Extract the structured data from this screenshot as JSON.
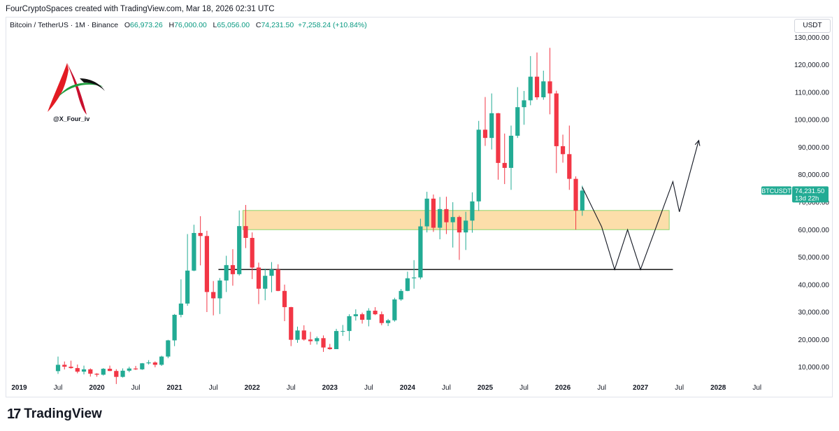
{
  "header": {
    "attribution": "FourCryptoSpaces created with TradingView.com, Mar 18, 2026 02:31 UTC"
  },
  "legend": {
    "symbol": "Bitcoin / TetherUS · 1M · Binance",
    "o_label": "O",
    "o_value": "66,973.26",
    "h_label": "H",
    "h_value": "76,000.00",
    "l_label": "L",
    "l_value": "65,056.00",
    "c_label": "C",
    "c_value": "74,231.50",
    "change": "+7,258.24 (+10.84%)"
  },
  "logo": {
    "handle": "@X_Four_iv",
    "mark": "A"
  },
  "price_scale": {
    "unit": "USDT"
  },
  "price_tag": {
    "symbol": "BTCUSDT",
    "price": "74,231.50",
    "countdown": "13d 22h"
  },
  "footer": {
    "brand": "TradingView",
    "icon": "tradingview-logo-icon"
  },
  "colors": {
    "up": "#22ab94",
    "down": "#f23645",
    "zone": "#fbd38d",
    "zone_border": "#8fd66f",
    "line": "#000000"
  },
  "chart_data": {
    "type": "candlestick",
    "interval": "1M",
    "y_axis_ticks": [
      10000,
      20000,
      30000,
      40000,
      50000,
      60000,
      70000,
      80000,
      90000,
      100000,
      110000,
      120000,
      130000
    ],
    "y_axis_labels": [
      "10,000.00",
      "20,000.00",
      "30,000.00",
      "40,000.00",
      "50,000.00",
      "60,000.00",
      "70,000.00",
      "80,000.00",
      "90,000.00",
      "100,000.00",
      "110,000.00",
      "120,000.00",
      "130,000.00"
    ],
    "ylim": [
      3000,
      137000
    ],
    "x_axis_labels": [
      {
        "label": "2019",
        "bold": true,
        "index": -6
      },
      {
        "label": "Jul",
        "bold": false,
        "index": 0
      },
      {
        "label": "2020",
        "bold": true,
        "index": 6
      },
      {
        "label": "Jul",
        "bold": false,
        "index": 12
      },
      {
        "label": "2021",
        "bold": true,
        "index": 18
      },
      {
        "label": "Jul",
        "bold": false,
        "index": 24
      },
      {
        "label": "2022",
        "bold": true,
        "index": 30
      },
      {
        "label": "Jul",
        "bold": false,
        "index": 36
      },
      {
        "label": "2023",
        "bold": true,
        "index": 42
      },
      {
        "label": "Jul",
        "bold": false,
        "index": 48
      },
      {
        "label": "2024",
        "bold": true,
        "index": 54
      },
      {
        "label": "Jul",
        "bold": false,
        "index": 60
      },
      {
        "label": "2025",
        "bold": true,
        "index": 66
      },
      {
        "label": "Jul",
        "bold": false,
        "index": 72
      },
      {
        "label": "2026",
        "bold": true,
        "index": 78
      },
      {
        "label": "Jul",
        "bold": false,
        "index": 84
      },
      {
        "label": "2027",
        "bold": true,
        "index": 90
      },
      {
        "label": "Jul",
        "bold": false,
        "index": 96
      },
      {
        "label": "2028",
        "bold": true,
        "index": 102
      },
      {
        "label": "Jul",
        "bold": false,
        "index": 108
      }
    ],
    "candles": [
      {
        "t": "2019-06",
        "o": 8500,
        "h": 13800,
        "l": 7500,
        "c": 10800
      },
      {
        "t": "2019-07",
        "o": 10800,
        "h": 12000,
        "l": 9100,
        "c": 10100
      },
      {
        "t": "2019-08",
        "o": 10100,
        "h": 12300,
        "l": 9400,
        "c": 9600
      },
      {
        "t": "2019-09",
        "o": 9600,
        "h": 10900,
        "l": 7700,
        "c": 8300
      },
      {
        "t": "2019-10",
        "o": 8300,
        "h": 10500,
        "l": 7300,
        "c": 9150
      },
      {
        "t": "2019-11",
        "o": 9150,
        "h": 9500,
        "l": 6500,
        "c": 7550
      },
      {
        "t": "2019-12",
        "o": 7550,
        "h": 7750,
        "l": 6450,
        "c": 7200
      },
      {
        "t": "2020-01",
        "o": 7200,
        "h": 9600,
        "l": 6900,
        "c": 9350
      },
      {
        "t": "2020-02",
        "o": 9350,
        "h": 10500,
        "l": 8500,
        "c": 8550
      },
      {
        "t": "2020-03",
        "o": 8550,
        "h": 9200,
        "l": 3800,
        "c": 6400
      },
      {
        "t": "2020-04",
        "o": 6400,
        "h": 9500,
        "l": 6150,
        "c": 8650
      },
      {
        "t": "2020-05",
        "o": 8650,
        "h": 10100,
        "l": 8100,
        "c": 9450
      },
      {
        "t": "2020-06",
        "o": 9450,
        "h": 10400,
        "l": 8900,
        "c": 9150
      },
      {
        "t": "2020-07",
        "o": 9150,
        "h": 11450,
        "l": 8950,
        "c": 11350
      },
      {
        "t": "2020-08",
        "o": 11350,
        "h": 12500,
        "l": 10900,
        "c": 11650
      },
      {
        "t": "2020-09",
        "o": 11650,
        "h": 12050,
        "l": 9900,
        "c": 10800
      },
      {
        "t": "2020-10",
        "o": 10800,
        "h": 14100,
        "l": 10400,
        "c": 13800
      },
      {
        "t": "2020-11",
        "o": 13800,
        "h": 19900,
        "l": 13200,
        "c": 19700
      },
      {
        "t": "2020-12",
        "o": 19700,
        "h": 29300,
        "l": 17600,
        "c": 29000
      },
      {
        "t": "2021-01",
        "o": 29000,
        "h": 41900,
        "l": 28100,
        "c": 33100
      },
      {
        "t": "2021-02",
        "o": 33100,
        "h": 58400,
        "l": 32300,
        "c": 45100
      },
      {
        "t": "2021-03",
        "o": 45100,
        "h": 61800,
        "l": 44900,
        "c": 58800
      },
      {
        "t": "2021-04",
        "o": 58800,
        "h": 64900,
        "l": 47000,
        "c": 57700
      },
      {
        "t": "2021-05",
        "o": 57700,
        "h": 59600,
        "l": 30000,
        "c": 37300
      },
      {
        "t": "2021-06",
        "o": 37300,
        "h": 41300,
        "l": 28800,
        "c": 35000
      },
      {
        "t": "2021-07",
        "o": 35000,
        "h": 42400,
        "l": 29300,
        "c": 41500
      },
      {
        "t": "2021-08",
        "o": 41500,
        "h": 50500,
        "l": 37300,
        "c": 47100
      },
      {
        "t": "2021-09",
        "o": 47100,
        "h": 52900,
        "l": 39600,
        "c": 43800
      },
      {
        "t": "2021-10",
        "o": 43800,
        "h": 67000,
        "l": 43300,
        "c": 61300
      },
      {
        "t": "2021-11",
        "o": 61300,
        "h": 69000,
        "l": 53300,
        "c": 57000
      },
      {
        "t": "2021-12",
        "o": 57000,
        "h": 59000,
        "l": 42000,
        "c": 46200
      },
      {
        "t": "2022-01",
        "o": 46200,
        "h": 48000,
        "l": 32900,
        "c": 38500
      },
      {
        "t": "2022-02",
        "o": 38500,
        "h": 45800,
        "l": 34300,
        "c": 43200
      },
      {
        "t": "2022-03",
        "o": 43200,
        "h": 48200,
        "l": 37200,
        "c": 45500
      },
      {
        "t": "2022-04",
        "o": 45500,
        "h": 47400,
        "l": 37600,
        "c": 37700
      },
      {
        "t": "2022-05",
        "o": 37700,
        "h": 40000,
        "l": 26700,
        "c": 31800
      },
      {
        "t": "2022-06",
        "o": 31800,
        "h": 31900,
        "l": 17600,
        "c": 19900
      },
      {
        "t": "2022-07",
        "o": 19900,
        "h": 24700,
        "l": 18800,
        "c": 23300
      },
      {
        "t": "2022-08",
        "o": 23300,
        "h": 25200,
        "l": 19600,
        "c": 20000
      },
      {
        "t": "2022-09",
        "o": 20000,
        "h": 22800,
        "l": 18100,
        "c": 19400
      },
      {
        "t": "2022-10",
        "o": 19400,
        "h": 21100,
        "l": 18200,
        "c": 20500
      },
      {
        "t": "2022-11",
        "o": 20500,
        "h": 21500,
        "l": 15500,
        "c": 17100
      },
      {
        "t": "2022-12",
        "o": 17100,
        "h": 18400,
        "l": 16300,
        "c": 16500
      },
      {
        "t": "2023-01",
        "o": 16500,
        "h": 23900,
        "l": 16500,
        "c": 23100
      },
      {
        "t": "2023-02",
        "o": 23100,
        "h": 25300,
        "l": 21300,
        "c": 23100
      },
      {
        "t": "2023-03",
        "o": 23100,
        "h": 29200,
        "l": 19500,
        "c": 28500
      },
      {
        "t": "2023-04",
        "o": 28500,
        "h": 31000,
        "l": 26900,
        "c": 29200
      },
      {
        "t": "2023-05",
        "o": 29200,
        "h": 29800,
        "l": 25800,
        "c": 27200
      },
      {
        "t": "2023-06",
        "o": 27200,
        "h": 31400,
        "l": 24800,
        "c": 30500
      },
      {
        "t": "2023-07",
        "o": 30500,
        "h": 31800,
        "l": 28900,
        "c": 29200
      },
      {
        "t": "2023-08",
        "o": 29200,
        "h": 30200,
        "l": 25200,
        "c": 26000
      },
      {
        "t": "2023-09",
        "o": 26000,
        "h": 27500,
        "l": 24900,
        "c": 27000
      },
      {
        "t": "2023-10",
        "o": 27000,
        "h": 35200,
        "l": 26500,
        "c": 34600
      },
      {
        "t": "2023-11",
        "o": 34600,
        "h": 38400,
        "l": 34100,
        "c": 37700
      },
      {
        "t": "2023-12",
        "o": 37700,
        "h": 44700,
        "l": 37600,
        "c": 42300
      },
      {
        "t": "2024-01",
        "o": 42300,
        "h": 48900,
        "l": 38500,
        "c": 42600
      },
      {
        "t": "2024-02",
        "o": 42600,
        "h": 64000,
        "l": 41900,
        "c": 61200
      },
      {
        "t": "2024-03",
        "o": 61200,
        "h": 73800,
        "l": 59000,
        "c": 71300
      },
      {
        "t": "2024-04",
        "o": 71300,
        "h": 72800,
        "l": 59200,
        "c": 60700
      },
      {
        "t": "2024-05",
        "o": 60700,
        "h": 71900,
        "l": 56500,
        "c": 67500
      },
      {
        "t": "2024-06",
        "o": 67500,
        "h": 72000,
        "l": 58400,
        "c": 62700
      },
      {
        "t": "2024-07",
        "o": 62700,
        "h": 70000,
        "l": 53500,
        "c": 64600
      },
      {
        "t": "2024-08",
        "o": 64600,
        "h": 65100,
        "l": 49000,
        "c": 59000
      },
      {
        "t": "2024-09",
        "o": 59000,
        "h": 66500,
        "l": 52600,
        "c": 63300
      },
      {
        "t": "2024-10",
        "o": 63300,
        "h": 73600,
        "l": 58900,
        "c": 70300
      },
      {
        "t": "2024-11",
        "o": 70300,
        "h": 99600,
        "l": 66800,
        "c": 96400
      },
      {
        "t": "2024-12",
        "o": 96400,
        "h": 108300,
        "l": 90500,
        "c": 93400
      },
      {
        "t": "2025-01",
        "o": 93400,
        "h": 109600,
        "l": 89200,
        "c": 102400
      },
      {
        "t": "2025-02",
        "o": 102400,
        "h": 102500,
        "l": 78200,
        "c": 84300
      },
      {
        "t": "2025-03",
        "o": 84300,
        "h": 95000,
        "l": 76600,
        "c": 82500
      },
      {
        "t": "2025-04",
        "o": 82500,
        "h": 97900,
        "l": 74500,
        "c": 94200
      },
      {
        "t": "2025-05",
        "o": 94200,
        "h": 111900,
        "l": 93400,
        "c": 104600
      },
      {
        "t": "2025-06",
        "o": 104600,
        "h": 110500,
        "l": 98200,
        "c": 107100
      },
      {
        "t": "2025-07",
        "o": 107100,
        "h": 123200,
        "l": 105300,
        "c": 115700
      },
      {
        "t": "2025-08",
        "o": 115700,
        "h": 124500,
        "l": 107300,
        "c": 108200
      },
      {
        "t": "2025-09",
        "o": 108200,
        "h": 117900,
        "l": 107300,
        "c": 114000
      },
      {
        "t": "2025-10",
        "o": 114000,
        "h": 126200,
        "l": 102000,
        "c": 109600
      },
      {
        "t": "2025-11",
        "o": 109600,
        "h": 110600,
        "l": 80600,
        "c": 90400
      },
      {
        "t": "2025-12",
        "o": 90400,
        "h": 94600,
        "l": 84400,
        "c": 87500
      },
      {
        "t": "2026-01",
        "o": 87500,
        "h": 97900,
        "l": 74500,
        "c": 78500
      },
      {
        "t": "2026-02",
        "o": 78500,
        "h": 79400,
        "l": 60000,
        "c": 66900
      },
      {
        "t": "2026-03",
        "o": 66973.26,
        "h": 76000,
        "l": 65056,
        "c": 74231.5
      }
    ],
    "annotations": {
      "zone": {
        "from_index": 29,
        "to_index": 94,
        "y_low": 60000,
        "y_high": 67000
      },
      "support_line": {
        "from_index": 25,
        "to_index": 95,
        "y": 45500
      },
      "projection_path": [
        {
          "index": 81,
          "y": 75500
        },
        {
          "index": 84,
          "y": 61000
        },
        {
          "index": 86,
          "y": 45500
        },
        {
          "index": 88,
          "y": 60000
        },
        {
          "index": 90,
          "y": 45500
        },
        {
          "index": 95,
          "y": 77500
        },
        {
          "index": 96,
          "y": 66500
        },
        {
          "index": 99,
          "y": 92500
        }
      ]
    }
  }
}
